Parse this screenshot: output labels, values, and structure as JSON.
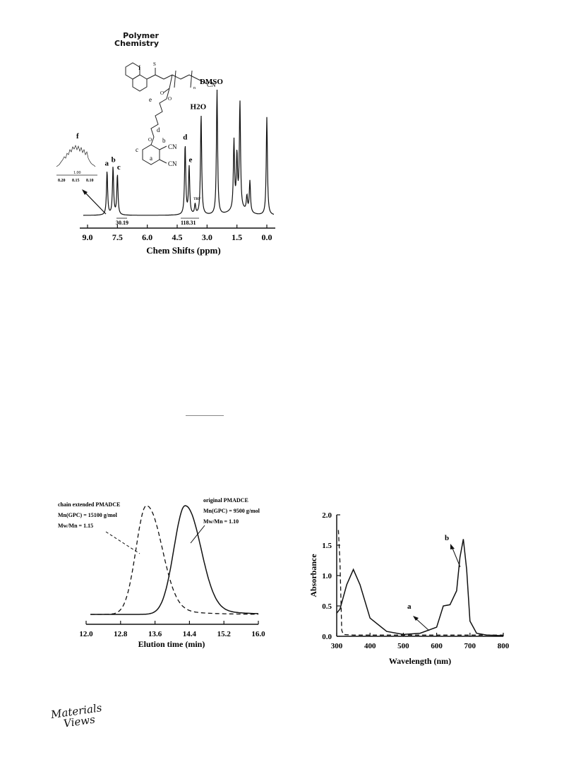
{
  "header": {
    "journal_line1": "Polymer",
    "journal_line2": "Chemistry"
  },
  "footer": {
    "logo_line1": "Materials",
    "logo_line2": "Views"
  },
  "figures": {
    "nmr": {
      "structure_labels": [
        "f",
        "e",
        "d",
        "c",
        "b",
        "a",
        "CN",
        "CN",
        "CN",
        "n",
        "S",
        "O",
        "O",
        "O"
      ],
      "peak_labels": [
        {
          "text": "a",
          "ppm": 8.0
        },
        {
          "text": "b",
          "ppm": 7.7
        },
        {
          "text": "c",
          "ppm": 7.5
        },
        {
          "text": "d",
          "ppm": 4.1
        },
        {
          "text": "e",
          "ppm": 3.9
        },
        {
          "text": "THF",
          "ppm": 3.6
        },
        {
          "text": "H2O",
          "ppm": 3.3
        },
        {
          "text": "DMSO",
          "ppm": 2.5
        }
      ],
      "integrals": [
        "30.19",
        "118.31"
      ],
      "inset": {
        "label": "f",
        "integral": "1.00",
        "ticks": [
          "8.20",
          "8.15",
          "8.10"
        ]
      }
    },
    "gpc": {
      "annotation_left": {
        "line1": "chain extended PMADCE",
        "line2": "Mn(GPC) = 15100 g/mol",
        "line3": "Mw/Mn = 1.15"
      },
      "annotation_right": {
        "line1": "original PMADCE",
        "line2": "Mn(GPC) = 9500 g/mol",
        "line3": "Mw/Mn = 1.10"
      }
    },
    "uv": {
      "label_a": "a",
      "label_b": "b"
    }
  },
  "chart_data": [
    {
      "type": "line",
      "xlabel": "Chem Shifts (ppm)",
      "ylabel": "",
      "xlim": [
        9.0,
        0.0
      ],
      "x_reversed": true,
      "x_ticks": [
        "9.0",
        "7.5",
        "6.0",
        "4.5",
        "3.0",
        "1.5",
        "0.0"
      ],
      "series": [
        {
          "peaks_ppm": [
            8.02,
            7.72,
            7.5,
            4.1,
            3.9,
            3.6,
            3.3,
            2.5,
            1.65,
            1.5,
            1.35,
            1.0,
            0.85,
            0.0
          ],
          "peaks_rel_height": [
            0.35,
            0.38,
            0.32,
            0.56,
            0.38,
            0.08,
            0.8,
            1.0,
            0.55,
            0.42,
            0.85,
            0.12,
            0.25,
            0.78
          ]
        }
      ]
    },
    {
      "type": "line",
      "xlabel": "Elution time (min)",
      "ylabel": "",
      "xlim": [
        12.0,
        16.0
      ],
      "x_ticks": [
        "12.0",
        "12.8",
        "13.6",
        "14.4",
        "15.2",
        "16.0"
      ],
      "series": [
        {
          "peak_x": 13.4,
          "style": "dashed",
          "peak_rel": 1.0
        },
        {
          "peak_x": 14.3,
          "style": "solid",
          "peak_rel": 1.0
        }
      ]
    },
    {
      "type": "line",
      "xlabel": "Wavelength (nm)",
      "ylabel": "Absorbance",
      "xlim": [
        300,
        800
      ],
      "ylim": [
        0.0,
        2.0
      ],
      "x_ticks": [
        "300",
        "400",
        "500",
        "600",
        "700",
        "800"
      ],
      "y_ticks": [
        "0.0",
        "0.5",
        "1.0",
        "1.5",
        "2.0"
      ],
      "series": [
        {
          "x": [
            300,
            310,
            330,
            350,
            370,
            400,
            450,
            500,
            550,
            600,
            620,
            640,
            660,
            670,
            680,
            690,
            700,
            720,
            750,
            800
          ],
          "y": [
            0.38,
            0.45,
            0.85,
            1.1,
            0.85,
            0.3,
            0.08,
            0.03,
            0.05,
            0.15,
            0.5,
            0.52,
            0.75,
            1.3,
            1.6,
            1.1,
            0.25,
            0.05,
            0.02,
            0.01
          ],
          "style": "solid"
        },
        {
          "x": [
            305,
            310,
            315,
            320,
            350,
            400,
            500,
            600,
            700,
            800
          ],
          "y": [
            1.75,
            1.2,
            0.1,
            0.03,
            0.02,
            0.02,
            0.02,
            0.02,
            0.02,
            0.02
          ],
          "style": "dashed"
        }
      ]
    }
  ]
}
